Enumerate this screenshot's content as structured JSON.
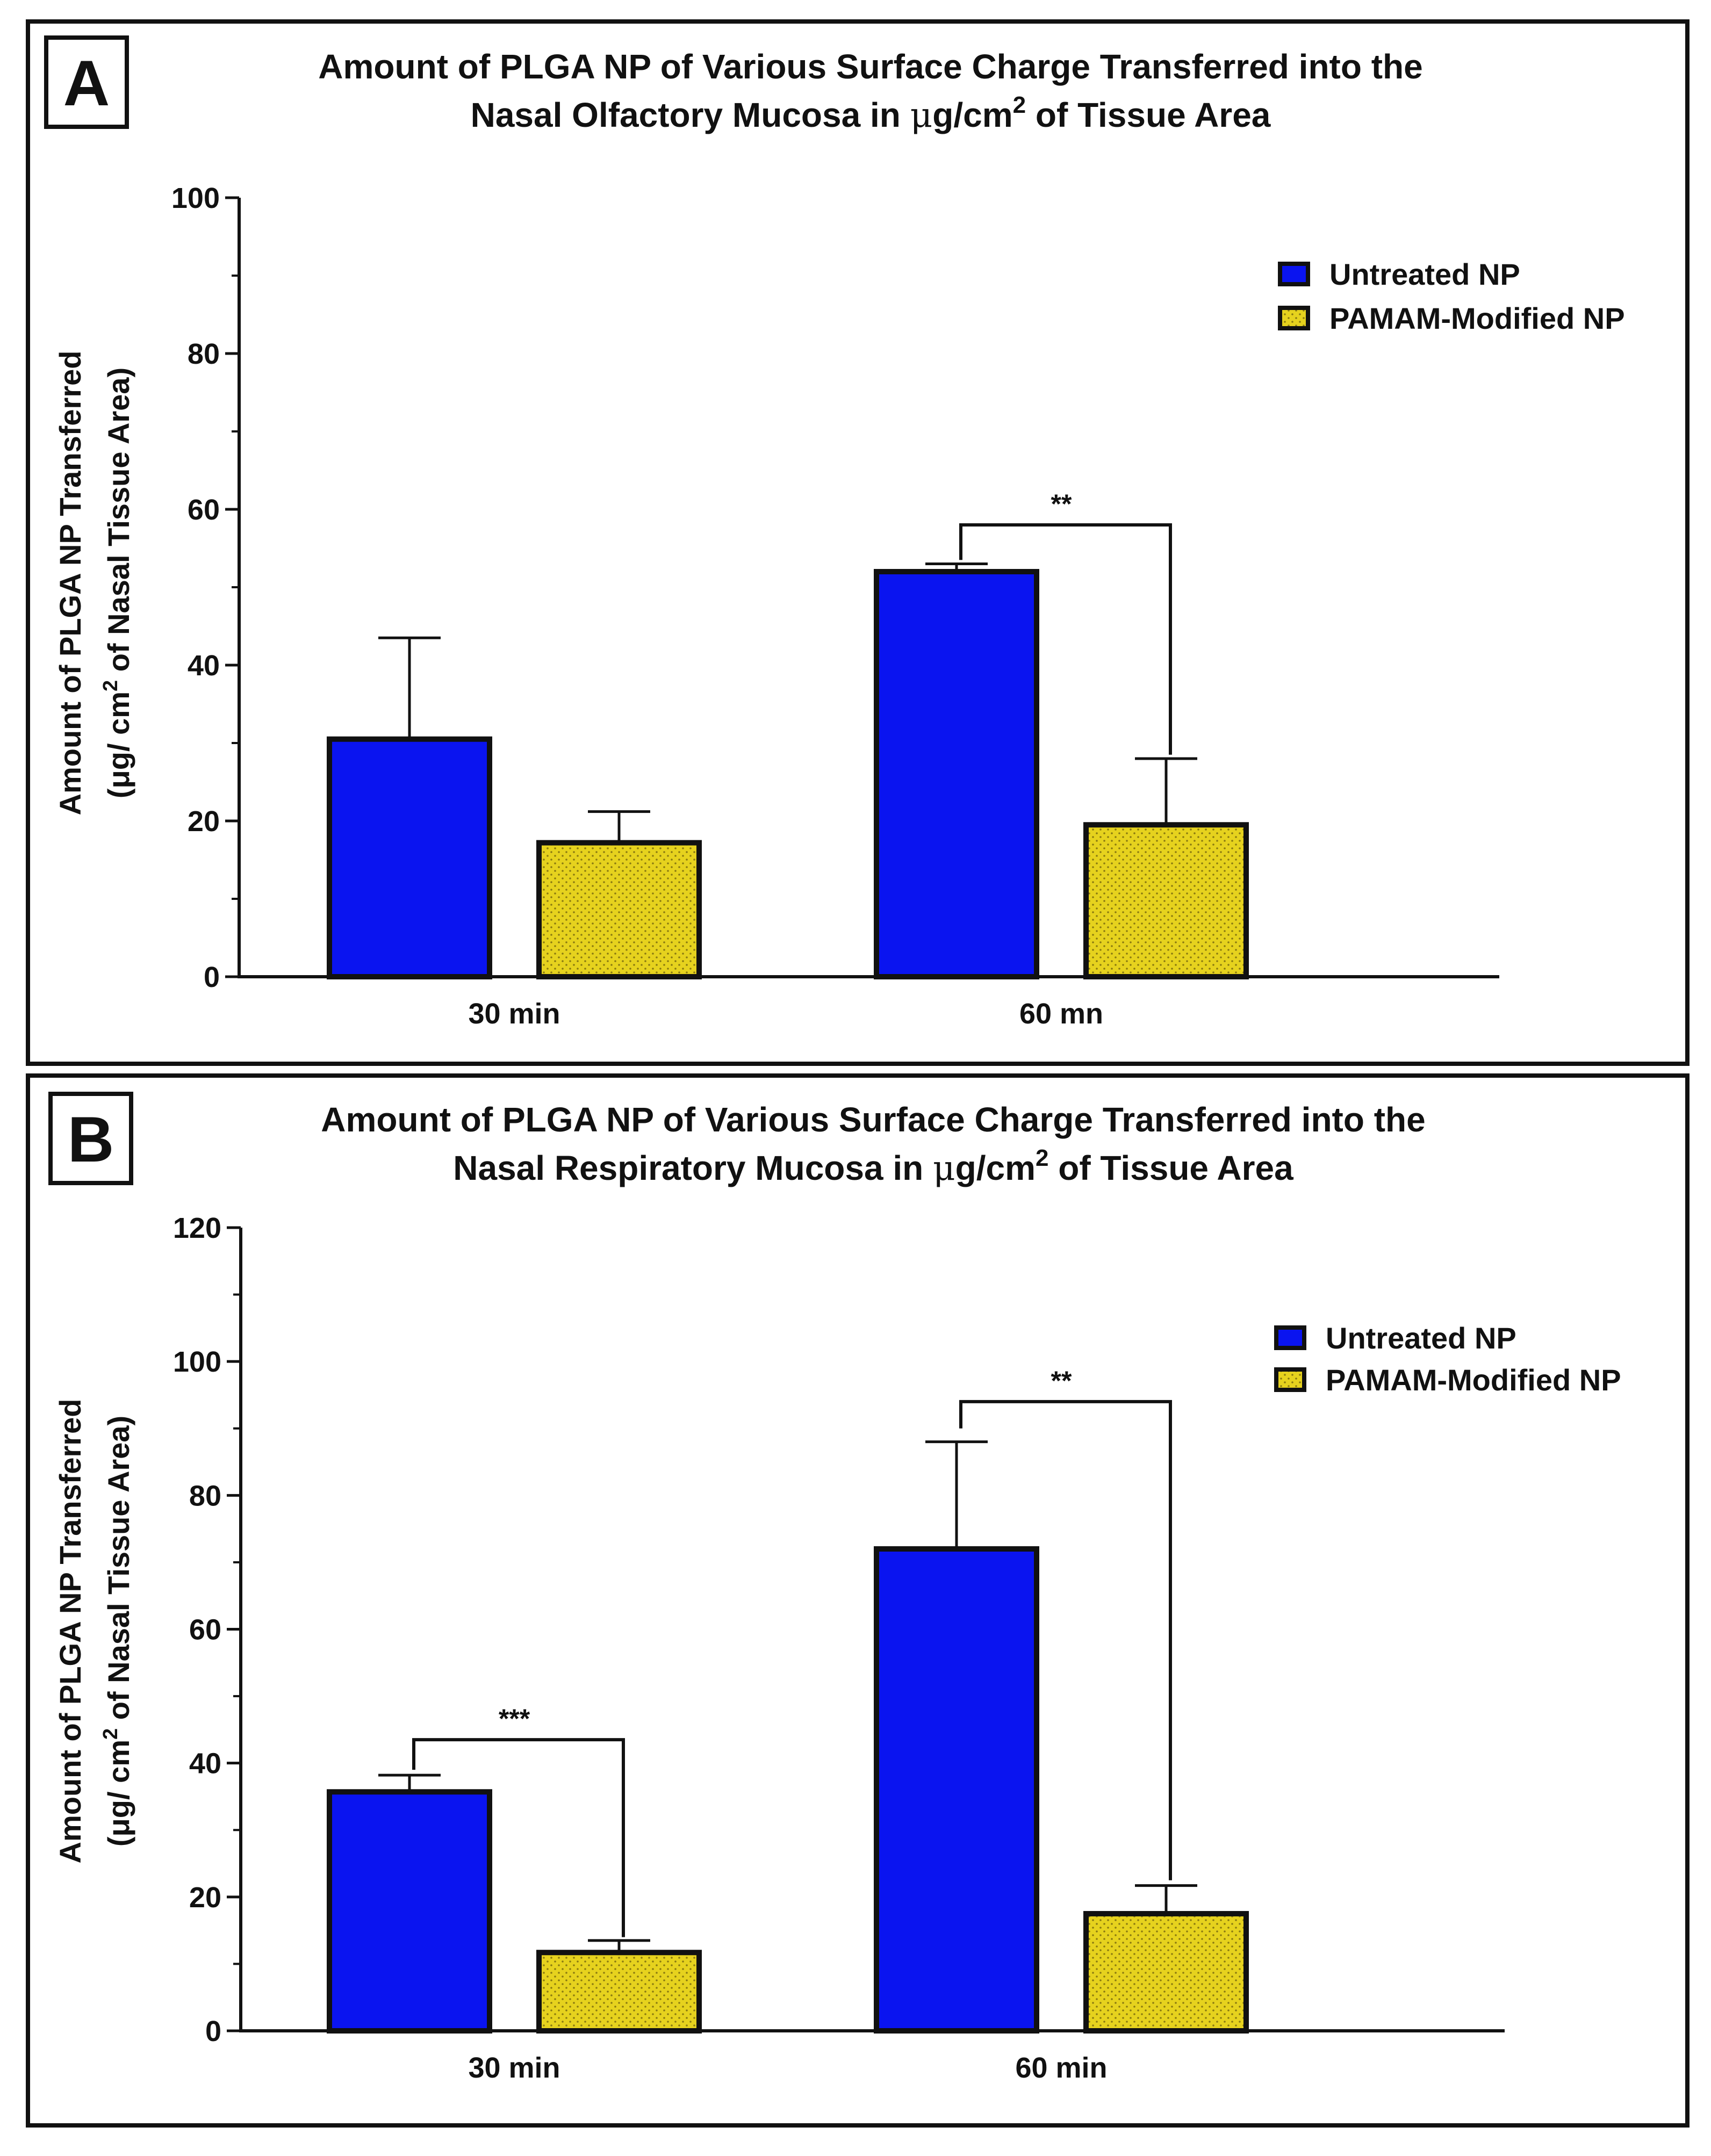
{
  "chart_data": [
    {
      "panel_label": "A",
      "type": "bar",
      "title_line1": "Amount of PLGA NP of Various Surface Charge Transferred into the",
      "title_line2_prefix": "Nasal Olfactory Mucosa in ",
      "title_unit_mu": "μ",
      "title_unit_base": "g/cm",
      "title_unit_sup": "2",
      "title_line2_suffix": " of Tissue Area",
      "ylabel_line1": "Amount of PLGA NP Transferred",
      "ylabel_line2_prefix": "(μg/ cm",
      "ylabel_line2_sup": "2",
      "ylabel_line2_suffix": " of Nasal Tissue Area)",
      "xlabel": "",
      "ylim": [
        0,
        100
      ],
      "major_tick_step": 20,
      "minor_tick_step": 10,
      "yticks": [
        "0",
        "20",
        "40",
        "60",
        "80",
        "100"
      ],
      "categories": [
        "30 min",
        "60 mn"
      ],
      "legend_position": "top-right",
      "series": [
        {
          "name": "Untreated NP",
          "values": [
            30.5,
            52.0
          ],
          "errors": [
            13.0,
            1.0
          ]
        },
        {
          "name": "PAMAM-Modified NP",
          "values": [
            17.2,
            19.5
          ],
          "errors": [
            4.0,
            8.5
          ]
        }
      ],
      "significance": [
        {
          "label": "**",
          "category_index": 1,
          "bracket_y": 58,
          "left_drop_to": 53.5,
          "right_drop_to": 28.5
        }
      ]
    },
    {
      "panel_label": "B",
      "type": "bar",
      "title_line1": "Amount of PLGA NP of Various Surface Charge Transferred into the",
      "title_line2_prefix": "Nasal Respiratory Mucosa in ",
      "title_unit_mu": "μ",
      "title_unit_base": "g/cm",
      "title_unit_sup": "2",
      "title_line2_suffix": " of Tissue Area",
      "ylabel_line1": "Amount of PLGA NP Transferred",
      "ylabel_line2_prefix": "(μg/ cm",
      "ylabel_line2_sup": "2",
      "ylabel_line2_suffix": " of Nasal Tissue Area)",
      "xlabel": "",
      "ylim": [
        0,
        120
      ],
      "major_tick_step": 20,
      "minor_tick_step": 10,
      "yticks": [
        "0",
        "20",
        "40",
        "60",
        "80",
        "100",
        "120"
      ],
      "categories": [
        "30 min",
        "60 min"
      ],
      "legend_position": "top-right",
      "series": [
        {
          "name": "Untreated NP",
          "values": [
            35.7,
            72.0
          ],
          "errors": [
            2.5,
            16.0
          ]
        },
        {
          "name": "PAMAM-Modified NP",
          "values": [
            11.7,
            17.5
          ],
          "errors": [
            1.8,
            4.2
          ]
        }
      ],
      "significance": [
        {
          "label": "***",
          "category_index": 0,
          "bracket_y": 43.5,
          "left_drop_to": 39.0,
          "right_drop_to": 14.0
        },
        {
          "label": "**",
          "category_index": 1,
          "bracket_y": 94,
          "left_drop_to": 90.0,
          "right_drop_to": 22.5
        }
      ]
    }
  ],
  "colors": {
    "untreated": "#0a14f0",
    "pamam": "#e6d21e",
    "pamam_dots": "#8a7a10",
    "axis": "#111111",
    "frame": "#111111"
  }
}
